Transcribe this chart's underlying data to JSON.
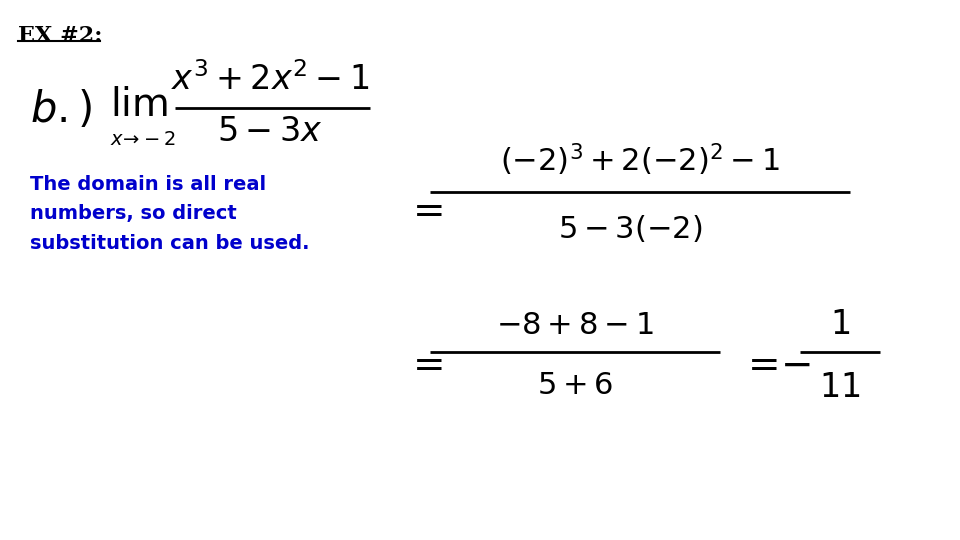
{
  "bg_color": "#ffffff",
  "title_text": "EX #2:",
  "blue_text": "The domain is all real\nnumbers, so direct\nsubstitution can be used.",
  "blue_color": "#0000cc",
  "black": "#000000"
}
